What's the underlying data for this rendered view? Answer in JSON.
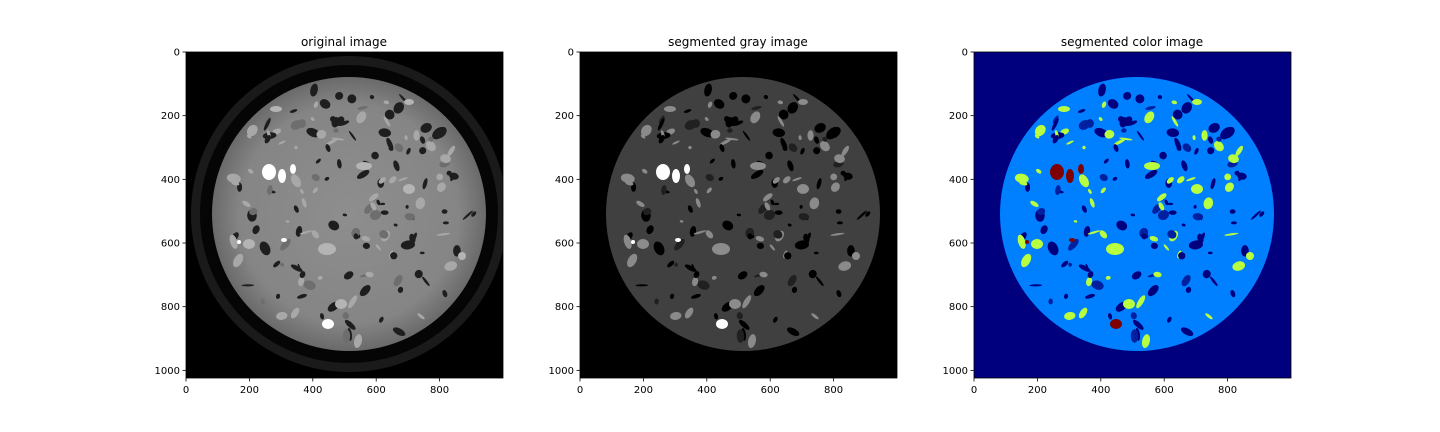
{
  "panels": [
    {
      "title": "original image",
      "kind": "original"
    },
    {
      "title": "segmented gray image",
      "kind": "gray"
    },
    {
      "title": "segmented color image",
      "kind": "color"
    }
  ],
  "axes": {
    "x_ticks": [
      "0",
      "200",
      "400",
      "600",
      "800"
    ],
    "y_ticks": [
      "0",
      "200",
      "400",
      "600",
      "800",
      "1000"
    ]
  },
  "colors": {
    "gray_bg": "#000000",
    "gray_phase": "#404040",
    "color_bg": "#00007f",
    "color_phase": "#007fff",
    "color_mid": "#b8ff3f",
    "color_high": "#7f0000"
  }
}
